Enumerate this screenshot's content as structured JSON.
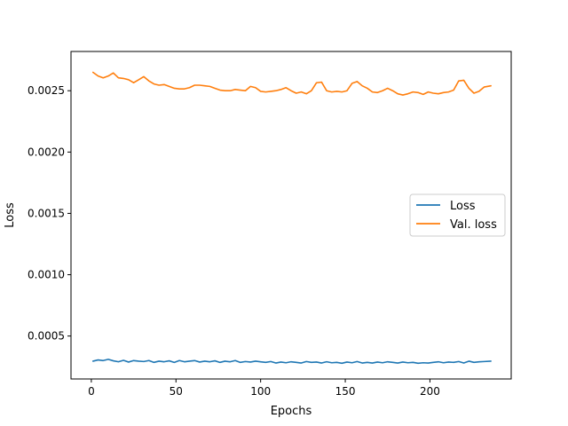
{
  "chart_data": {
    "type": "line",
    "title": "",
    "xlabel": "Epochs",
    "ylabel": "Loss",
    "xlim": [
      -12,
      248
    ],
    "ylim": [
      0.00015,
      0.00282
    ],
    "xticks": [
      0,
      50,
      100,
      150,
      200
    ],
    "yticks": [
      0.0005,
      0.001,
      0.0015,
      0.002,
      0.0025
    ],
    "xtick_labels": [
      "0",
      "50",
      "100",
      "150",
      "200"
    ],
    "ytick_labels": [
      "0.0005",
      "0.0010",
      "0.0015",
      "0.0020",
      "0.0025"
    ],
    "grid": false,
    "legend_position": "center-right",
    "series": [
      {
        "name": "Loss",
        "color": "#1f77b4",
        "x": [
          1,
          4,
          7,
          10,
          13,
          16,
          19,
          22,
          25,
          28,
          31,
          34,
          37,
          40,
          43,
          46,
          49,
          52,
          55,
          58,
          61,
          64,
          67,
          70,
          73,
          76,
          79,
          82,
          85,
          88,
          91,
          94,
          97,
          100,
          103,
          106,
          109,
          112,
          115,
          118,
          121,
          124,
          127,
          130,
          133,
          136,
          139,
          142,
          145,
          148,
          151,
          154,
          157,
          160,
          163,
          166,
          169,
          172,
          175,
          178,
          181,
          184,
          187,
          190,
          193,
          196,
          199,
          202,
          205,
          208,
          211,
          214,
          217,
          220,
          223,
          226,
          229,
          232,
          236
        ],
        "values": [
          0.000295,
          0.000305,
          0.0003,
          0.00031,
          0.000298,
          0.00029,
          0.000302,
          0.000288,
          0.0003,
          0.000295,
          0.000292,
          0.0003,
          0.000285,
          0.000295,
          0.00029,
          0.000298,
          0.000285,
          0.0003,
          0.00029,
          0.000295,
          0.0003,
          0.000288,
          0.000295,
          0.00029,
          0.000298,
          0.000285,
          0.000295,
          0.00029,
          0.0003,
          0.000285,
          0.000292,
          0.000288,
          0.000295,
          0.00029,
          0.000285,
          0.000292,
          0.00028,
          0.000288,
          0.000282,
          0.00029,
          0.000285,
          0.00028,
          0.000292,
          0.000285,
          0.000288,
          0.00028,
          0.00029,
          0.000282,
          0.000285,
          0.000278,
          0.000288,
          0.000282,
          0.000292,
          0.00028,
          0.000285,
          0.00028,
          0.000288,
          0.000282,
          0.00029,
          0.000285,
          0.00028,
          0.000288,
          0.000282,
          0.000285,
          0.000278,
          0.000282,
          0.00028,
          0.000285,
          0.00029,
          0.000282,
          0.000288,
          0.000285,
          0.000292,
          0.00028,
          0.000295,
          0.000285,
          0.00029,
          0.000292,
          0.000295
        ]
      },
      {
        "name": "Val. loss",
        "color": "#ff7f0e",
        "x": [
          1,
          4,
          7,
          10,
          13,
          16,
          19,
          22,
          25,
          28,
          31,
          34,
          37,
          40,
          43,
          46,
          49,
          52,
          55,
          58,
          61,
          64,
          67,
          70,
          73,
          76,
          79,
          82,
          85,
          88,
          91,
          94,
          97,
          100,
          103,
          106,
          109,
          112,
          115,
          118,
          121,
          124,
          127,
          130,
          133,
          136,
          139,
          142,
          145,
          148,
          151,
          154,
          157,
          160,
          163,
          166,
          169,
          172,
          175,
          178,
          181,
          184,
          187,
          190,
          193,
          196,
          199,
          202,
          205,
          208,
          211,
          214,
          217,
          220,
          223,
          226,
          229,
          232,
          236
        ],
        "values": [
          0.00265,
          0.00262,
          0.002605,
          0.00262,
          0.002645,
          0.002605,
          0.0026,
          0.00259,
          0.002565,
          0.00259,
          0.002615,
          0.00258,
          0.002555,
          0.002545,
          0.00255,
          0.002535,
          0.00252,
          0.002515,
          0.002515,
          0.002525,
          0.002545,
          0.002545,
          0.00254,
          0.002535,
          0.00252,
          0.002505,
          0.0025,
          0.0025,
          0.00251,
          0.002505,
          0.0025,
          0.002535,
          0.002525,
          0.002495,
          0.00249,
          0.002495,
          0.0025,
          0.00251,
          0.002525,
          0.0025,
          0.00248,
          0.00249,
          0.002475,
          0.0025,
          0.002565,
          0.00257,
          0.0025,
          0.00249,
          0.002495,
          0.00249,
          0.0025,
          0.00256,
          0.002575,
          0.00254,
          0.00252,
          0.00249,
          0.002485,
          0.0025,
          0.00252,
          0.0025,
          0.002475,
          0.002465,
          0.002475,
          0.00249,
          0.002485,
          0.00247,
          0.00249,
          0.00248,
          0.002475,
          0.002485,
          0.00249,
          0.002505,
          0.00258,
          0.002585,
          0.00252,
          0.00248,
          0.002495,
          0.00253,
          0.00254
        ]
      }
    ]
  }
}
